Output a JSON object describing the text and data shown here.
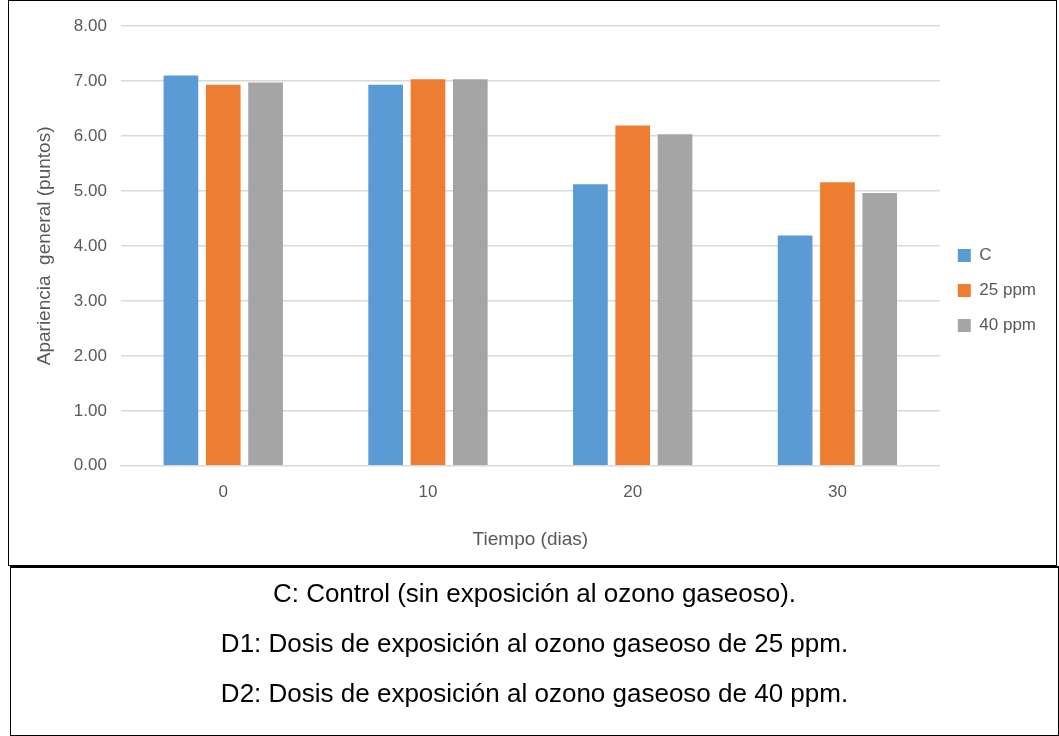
{
  "chart_data": {
    "type": "bar",
    "xlabel": "Tiempo (dias)",
    "ylabel": "Apariencia  general (puntos)",
    "categories": [
      "0",
      "10",
      "20",
      "30"
    ],
    "series": [
      {
        "name": "C",
        "color": "#5b9bd5",
        "values": [
          7.1,
          6.93,
          5.12,
          4.19
        ]
      },
      {
        "name": "25 ppm",
        "color": "#ed7d31",
        "values": [
          6.93,
          7.03,
          6.19,
          5.16
        ]
      },
      {
        "name": "40 ppm",
        "color": "#a5a5a5",
        "values": [
          6.97,
          7.03,
          6.03,
          4.96
        ]
      }
    ],
    "ylim": [
      0,
      8
    ],
    "yticks": [
      {
        "value": 0,
        "label": "0.00"
      },
      {
        "value": 1,
        "label": "1.00"
      },
      {
        "value": 2,
        "label": "2.00"
      },
      {
        "value": 3,
        "label": "3.00"
      },
      {
        "value": 4,
        "label": "4.00"
      },
      {
        "value": 5,
        "label": "5.00"
      },
      {
        "value": 6,
        "label": "6.00"
      },
      {
        "value": 7,
        "label": "7.00"
      },
      {
        "value": 8,
        "label": "8.00"
      }
    ],
    "grid": "y",
    "legend": "right",
    "annotations": [
      "C: Control (sin exposición al ozono gaseoso).",
      "D1: Dosis de exposición al ozono gaseoso de 25 ppm.",
      "D2: Dosis de exposición al ozono gaseoso de 40 ppm."
    ]
  }
}
